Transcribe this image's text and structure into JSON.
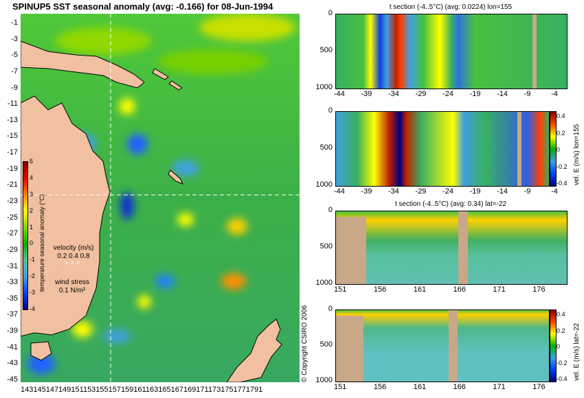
{
  "main_panel": {
    "title": "SPINUP5 SST seasonal anomaly (avg: -0.166) for 08-Jun-1994",
    "y_ticks": [
      "-1",
      "-3",
      "-5",
      "-7",
      "-9",
      "-11",
      "-13",
      "-15",
      "-17",
      "-19",
      "-21",
      "-23",
      "-25",
      "-27",
      "-29",
      "-31",
      "-33",
      "-35",
      "-37",
      "-39",
      "-41",
      "-43",
      "-45"
    ],
    "x_ticks_text": "1431451471491511531551571591611631651671691711731751771791",
    "colorbar": {
      "label": "temperature seasonal anomaly (°C)",
      "ticks": [
        "5",
        "4",
        "3",
        "2",
        "1",
        "0",
        "-1",
        "-2",
        "-3",
        "-4"
      ],
      "colors": [
        "#8b0000",
        "#e00000",
        "#ff8000",
        "#ffff00",
        "#78d800",
        "#00b000",
        "#50c0a0",
        "#40a0e0",
        "#0040ff",
        "#000080"
      ]
    },
    "velocity_legend": {
      "title": "velocity (m/s)",
      "scale": "0.2 0.4 0.8"
    },
    "wind_legend": {
      "title": "wind stress",
      "value": "0.1 N/m²"
    },
    "copyright": "© Copyright CSIRO 2006"
  },
  "panels": [
    {
      "title": "t section (-4..5°C) (avg: 0.0224) lon=155",
      "y_ticks": [
        "0",
        "500",
        "1000"
      ],
      "x_ticks": [
        "-44",
        "-39",
        "-34",
        "-29",
        "-24",
        "-19",
        "-14",
        "-9",
        "-4"
      ]
    },
    {
      "title": "",
      "y_ticks": [
        "0",
        "500",
        "1000"
      ],
      "x_ticks": [
        "-44",
        "-39",
        "-34",
        "-29",
        "-24",
        "-19",
        "-14",
        "-9",
        "-4"
      ],
      "colorbar_label": "vel. E (m/s) lon=155",
      "colorbar_ticks": [
        "0.4",
        "0.2",
        "0",
        "-0.2",
        "-0.4"
      ]
    },
    {
      "title": "t section (-4..5°C) (avg: 0.34) lat=-22",
      "y_ticks": [
        "0",
        "500",
        "1000"
      ],
      "x_ticks": [
        "151",
        "156",
        "161",
        "166",
        "171",
        "176"
      ]
    },
    {
      "title": "",
      "y_ticks": [
        "0",
        "500",
        "1000"
      ],
      "x_ticks": [
        "151",
        "156",
        "161",
        "166",
        "171",
        "176"
      ],
      "colorbar_label": "vel. E (m/s) lat=-22",
      "colorbar_ticks": [
        "0.4",
        "0.2",
        "0",
        "-0.2",
        "-0.4"
      ]
    }
  ],
  "chart_data": [
    {
      "type": "heatmap",
      "title": "SPINUP5 SST seasonal anomaly (avg: -0.166) for 08-Jun-1994",
      "variable": "temperature seasonal anomaly (°C)",
      "xlim": [
        143,
        180
      ],
      "ylim": [
        -45,
        0
      ],
      "color_range": [
        -4,
        5
      ],
      "section_lines": {
        "lon": 155,
        "lat": -22
      }
    },
    {
      "type": "heatmap",
      "title": "t section (-4..5°C) (avg: 0.0224) lon=155",
      "x_ticks": [
        -44,
        -39,
        -34,
        -29,
        -24,
        -19,
        -14,
        -9,
        -4
      ],
      "y_ticks": [
        0,
        500,
        1000
      ],
      "y_inverted": true,
      "color_range": [
        -4,
        5
      ]
    },
    {
      "type": "heatmap",
      "variable": "vel. E (m/s) lon=155",
      "x_ticks": [
        -44,
        -39,
        -34,
        -29,
        -24,
        -19,
        -14,
        -9,
        -4
      ],
      "y_ticks": [
        0,
        500,
        1000
      ],
      "y_inverted": true,
      "color_range": [
        -0.4,
        0.4
      ]
    },
    {
      "type": "heatmap",
      "title": "t section (-4..5°C) (avg: 0.34) lat=-22",
      "x_ticks": [
        151,
        156,
        161,
        166,
        171,
        176
      ],
      "y_ticks": [
        0,
        500,
        1000
      ],
      "y_inverted": true,
      "color_range": [
        -4,
        5
      ]
    },
    {
      "type": "heatmap",
      "variable": "vel. E (m/s) lat=-22",
      "x_ticks": [
        151,
        156,
        161,
        166,
        171,
        176
      ],
      "y_ticks": [
        0,
        500,
        1000
      ],
      "y_inverted": true,
      "color_range": [
        -0.4,
        0.4
      ]
    }
  ]
}
